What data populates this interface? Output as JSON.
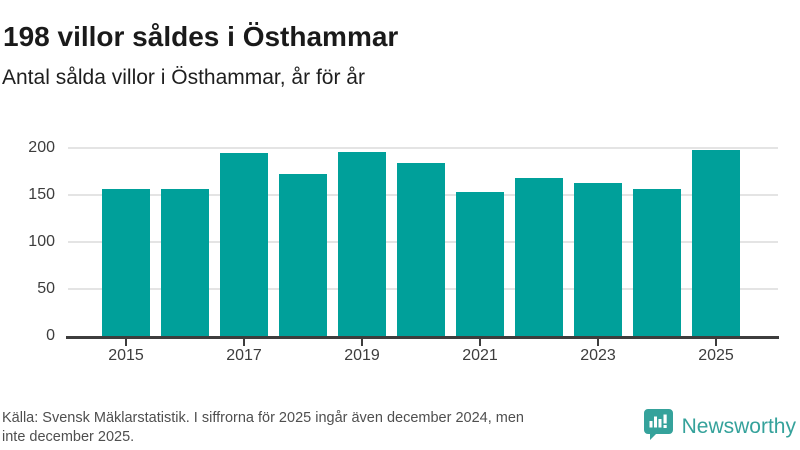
{
  "header": {
    "title": "198 villor såldes i Östhammar",
    "subtitle": "Antal sålda villor i Östhammar, år för år"
  },
  "chart_data": {
    "type": "bar",
    "categories": [
      "2015",
      "2016",
      "2017",
      "2018",
      "2019",
      "2020",
      "2021",
      "2022",
      "2023",
      "2024",
      "2025"
    ],
    "values": [
      156,
      156,
      195,
      172,
      196,
      184,
      153,
      168,
      163,
      156,
      198
    ],
    "title": "Antal sålda villor i Östhammar, år för år",
    "xlabel": "",
    "ylabel": "",
    "ylim": [
      0,
      200
    ],
    "y_ticks": [
      0,
      50,
      100,
      150,
      200
    ],
    "x_tick_labels": [
      "2015",
      "2017",
      "2019",
      "2021",
      "2023",
      "2025"
    ],
    "grid": "horizontal",
    "legend": "none",
    "bar_color": "#00a09a"
  },
  "footer": {
    "lines": [
      "Källa: Svensk Mäklarstatistik. I siffrorna för 2025 ingår även december 2024, men",
      "inte december 2025."
    ]
  },
  "brand": {
    "name": "Newsworthy",
    "color": "#35a29b"
  },
  "colors": {
    "bar": "#00a09a",
    "axis": "#3d3d3d",
    "grid": "#e4e4e4",
    "title_text": "#1a1a1a",
    "footer_text": "#4f4f4f"
  }
}
